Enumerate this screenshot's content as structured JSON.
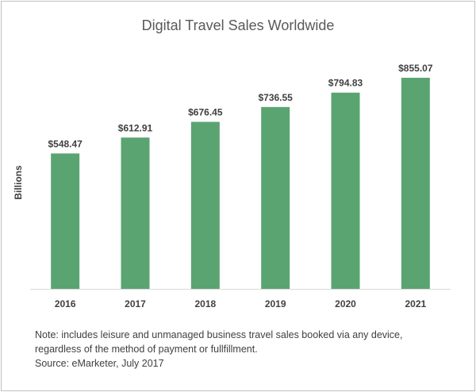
{
  "chart_data": {
    "type": "bar",
    "title": "Digital Travel Sales Worldwide",
    "ylabel": "Billions",
    "xlabel": "",
    "categories": [
      "2016",
      "2017",
      "2018",
      "2019",
      "2020",
      "2021"
    ],
    "values": [
      548.47,
      612.91,
      676.45,
      736.55,
      794.83,
      855.07
    ],
    "data_labels": [
      "$548.47",
      "$612.91",
      "$676.45",
      "$736.55",
      "$794.83",
      "$855.07"
    ],
    "ylim": [
      0,
      855.07
    ],
    "grid": false,
    "legend": "none",
    "bar_color": "#5aa472",
    "axis_color": "#d9d9d9"
  },
  "notes": {
    "line1": "Note: includes leisure and unmanaged business travel sales booked via any device,",
    "line2": "regardless of the method of payment or fullfillment.",
    "source": "Source: eMarketer, July 2017"
  }
}
